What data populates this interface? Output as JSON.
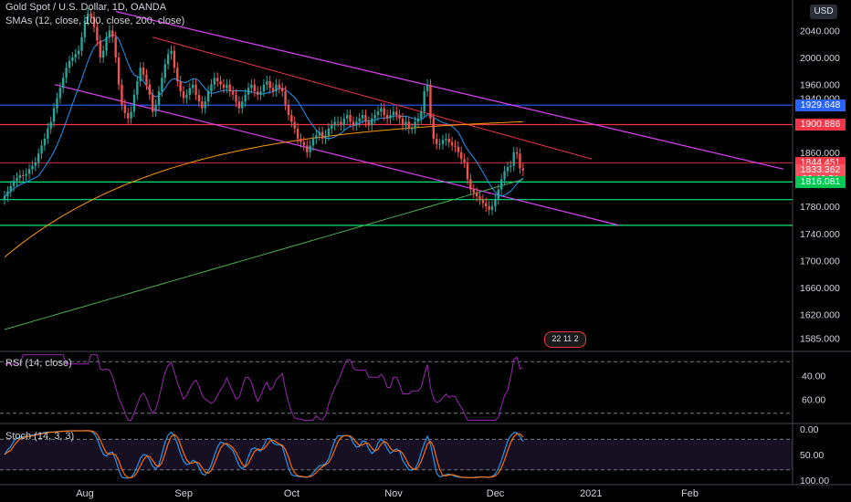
{
  "legend": {
    "symbol": "Gold Spot / U.S. Dollar, 1D, OANDA",
    "smas": "SMAs (12, close, 100, close, 200, close)",
    "rsi": "RSI (14, close)",
    "stoch": "Stoch (14, 3, 3)"
  },
  "currency_button": "USD",
  "price_tags": [
    {
      "text": "1929.648",
      "color": "#2962ff",
      "price": 1929.648
    },
    {
      "text": "1900.886",
      "color": "#f23645",
      "price": 1900.886
    },
    {
      "text": "1844.451",
      "color": "#f23645",
      "price": 1844.451
    },
    {
      "text": "1833.362",
      "color": "#f7525f",
      "price": 1833.362
    },
    {
      "text": "03:46:51",
      "color": "#f7525f",
      "price": 1819.5
    },
    {
      "text": "1816.081",
      "color": "#00c853",
      "price": 1816.081
    }
  ],
  "marker_badge": "22 11 2",
  "colors": {
    "up": "#26a69a",
    "down": "#ef5350",
    "sma12": "#2196f3",
    "sma100": "#ff9800",
    "sma200": "#4caf50",
    "channel": "#e040fb",
    "red_line": "#f23645",
    "blue_line": "#2962ff",
    "green_line": "#00e676",
    "rsi": "#9c27b0",
    "stoch_k": "#2196f3",
    "stoch_d": "#ff6d00"
  },
  "chart_data": {
    "type": "candlestick",
    "x_axis": {
      "labels": [
        "Aug",
        "Sep",
        "Oct",
        "Nov",
        "Dec",
        "2021",
        "Feb"
      ],
      "label_days": [
        0,
        32,
        67,
        100,
        133,
        164,
        196
      ]
    },
    "price_axis": {
      "ticks": [
        1585,
        1620,
        1660,
        1700,
        1740,
        1780,
        1820,
        1860,
        1900,
        1940,
        1960,
        2000,
        2040
      ],
      "tick_labels": [
        "1585.000",
        "1620.000",
        "1660.000",
        "1700.000",
        "1740.000",
        "1780.000",
        "1820.000",
        "1860.000",
        "1900.000",
        "1940.000",
        "1960.000",
        "2000.000",
        "2040.000"
      ],
      "range": [
        1567,
        2085
      ]
    },
    "closes": [
      1795,
      1802,
      1810,
      1818,
      1822,
      1826,
      1825,
      1828,
      1835,
      1840,
      1845,
      1858,
      1870,
      1880,
      1895,
      1905,
      1925,
      1940,
      1955,
      1970,
      1985,
      1995,
      2000,
      2005,
      2010,
      2030,
      2055,
      2065,
      2060,
      2045,
      2025,
      2000,
      2010,
      2030,
      2040,
      2030,
      2000,
      1960,
      1930,
      1918,
      1910,
      1920,
      1945,
      1965,
      1985,
      1975,
      1960,
      1945,
      1920,
      1930,
      1950,
      1970,
      1990,
      2005,
      2010,
      1985,
      1965,
      1950,
      1940,
      1945,
      1955,
      1960,
      1945,
      1935,
      1925,
      1935,
      1950,
      1960,
      1970,
      1965,
      1960,
      1955,
      1960,
      1950,
      1945,
      1935,
      1925,
      1935,
      1945,
      1955,
      1960,
      1950,
      1945,
      1950,
      1960,
      1965,
      1955,
      1950,
      1960,
      1955,
      1950,
      1930,
      1915,
      1905,
      1895,
      1880,
      1875,
      1870,
      1860,
      1870,
      1880,
      1885,
      1890,
      1880,
      1885,
      1895,
      1900,
      1905,
      1905,
      1900,
      1910,
      1915,
      1905,
      1900,
      1905,
      1910,
      1915,
      1905,
      1900,
      1910,
      1915,
      1920,
      1925,
      1915,
      1910,
      1915,
      1920,
      1915,
      1910,
      1900,
      1905,
      1895,
      1895,
      1905,
      1910,
      1920,
      1950,
      1960,
      1910,
      1880,
      1872,
      1872,
      1878,
      1880,
      1875,
      1870,
      1868,
      1860,
      1850,
      1845,
      1820,
      1805,
      1800,
      1795,
      1790,
      1785,
      1780,
      1775,
      1780,
      1790,
      1805,
      1820,
      1832,
      1838,
      1840,
      1860,
      1858,
      1836,
      1833
    ],
    "sma_period_ticks": [
      12,
      100,
      200
    ],
    "rsi": {
      "levels": [
        40,
        60
      ],
      "ticks": [
        "60.00",
        "40.00"
      ]
    },
    "stoch": {
      "levels": [
        0,
        50,
        100
      ],
      "ticks": [
        "100.00",
        "50.00",
        "0.00"
      ]
    }
  }
}
